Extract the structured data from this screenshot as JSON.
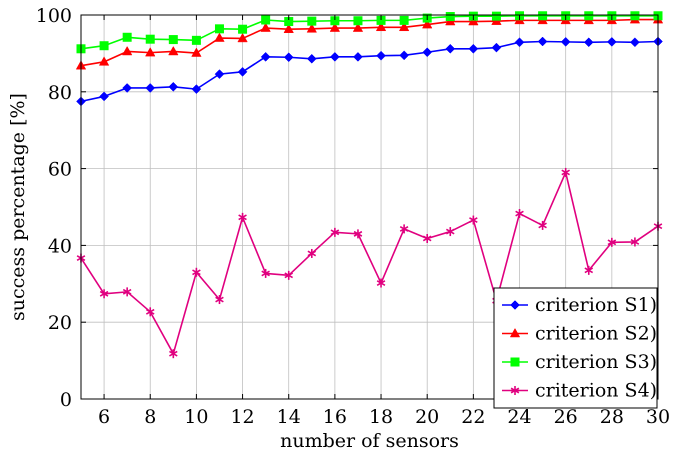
{
  "chart_data": {
    "type": "line",
    "xlabel": "number of sensors",
    "ylabel": "success percentage [%]",
    "xlim": [
      5,
      30
    ],
    "ylim": [
      0,
      100
    ],
    "x_ticks": [
      6,
      8,
      10,
      12,
      14,
      16,
      18,
      20,
      22,
      24,
      26,
      28,
      30
    ],
    "y_ticks": [
      0,
      20,
      40,
      60,
      80,
      100
    ],
    "grid": true,
    "legend_position": "bottom-right",
    "x": [
      5,
      6,
      7,
      8,
      9,
      10,
      11,
      12,
      13,
      14,
      15,
      16,
      17,
      18,
      19,
      20,
      21,
      22,
      23,
      24,
      25,
      26,
      27,
      28,
      29,
      30
    ],
    "series": [
      {
        "name": "criterion S1)",
        "color": "#0000ff",
        "marker": "diamond",
        "values": [
          77.5,
          78.8,
          81,
          81,
          81.3,
          80.7,
          84.6,
          85.2,
          89.1,
          89,
          88.6,
          89.1,
          89.1,
          89.4,
          89.5,
          90.3,
          91.2,
          91.2,
          91.5,
          92.9,
          93.1,
          93.0,
          92.9,
          93.0,
          92.9,
          93.1
        ]
      },
      {
        "name": "criterion S2)",
        "color": "#ff0000",
        "marker": "triangle",
        "values": [
          86.8,
          87.8,
          90.5,
          90.2,
          90.5,
          90.1,
          94.0,
          93.9,
          96.6,
          96.3,
          96.4,
          96.6,
          96.6,
          96.8,
          96.8,
          97.5,
          98.3,
          98.3,
          98.4,
          98.6,
          98.6,
          98.6,
          98.6,
          98.6,
          98.8,
          98.8
        ]
      },
      {
        "name": "criterion S3)",
        "color": "#00ff00",
        "marker": "square",
        "values": [
          91.2,
          92.0,
          94.2,
          93.7,
          93.6,
          93.4,
          96.4,
          96.3,
          98.7,
          98.3,
          98.4,
          98.5,
          98.5,
          98.6,
          98.6,
          99.2,
          99.6,
          99.7,
          99.7,
          99.8,
          99.8,
          99.8,
          99.8,
          99.8,
          99.8,
          99.8
        ]
      },
      {
        "name": "criterion S4)",
        "color": "#e0007f",
        "marker": "star",
        "values": [
          36.7,
          27.4,
          27.9,
          22.7,
          11.8,
          33.0,
          25.9,
          47.3,
          32.7,
          32.2,
          37.9,
          43.4,
          43.0,
          30.2,
          44.3,
          41.8,
          43.6,
          46.6,
          25.6,
          48.3,
          45.2,
          59.0,
          33.5,
          40.8,
          40.9,
          45.0
        ]
      }
    ]
  }
}
